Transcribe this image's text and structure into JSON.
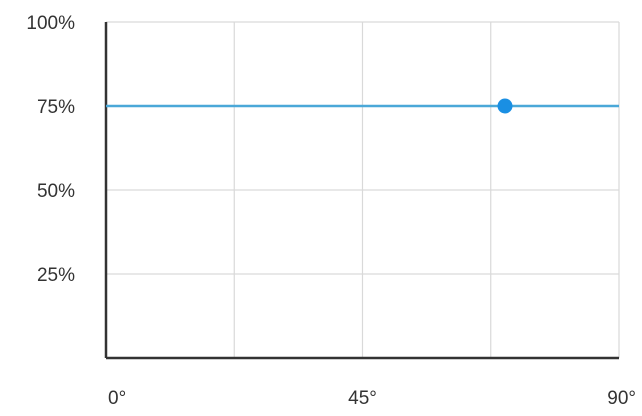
{
  "chart_data": {
    "type": "line",
    "title": "",
    "xlabel": "",
    "ylabel": "",
    "xlim": [
      0,
      90
    ],
    "ylim": [
      0,
      100
    ],
    "x_ticks": [
      {
        "value": 0,
        "label": "0°"
      },
      {
        "value": 45,
        "label": "45°"
      },
      {
        "value": 90,
        "label": "90°"
      }
    ],
    "y_ticks": [
      {
        "value": 25,
        "label": "25%"
      },
      {
        "value": 50,
        "label": "50%"
      },
      {
        "value": 75,
        "label": "75%"
      },
      {
        "value": 100,
        "label": "100%"
      }
    ],
    "grid": {
      "x_values": [
        22.5,
        45,
        67.5,
        90
      ],
      "y_values": [
        25,
        50,
        75,
        100
      ],
      "color": "#d9d9d9"
    },
    "axis_color": "#333333",
    "series": [
      {
        "x": [
          0,
          90
        ],
        "y": [
          75,
          75
        ],
        "color": "#4aa8d8",
        "marker": {
          "x": 70,
          "y": 75,
          "color": "#1a8fe3"
        }
      }
    ]
  }
}
